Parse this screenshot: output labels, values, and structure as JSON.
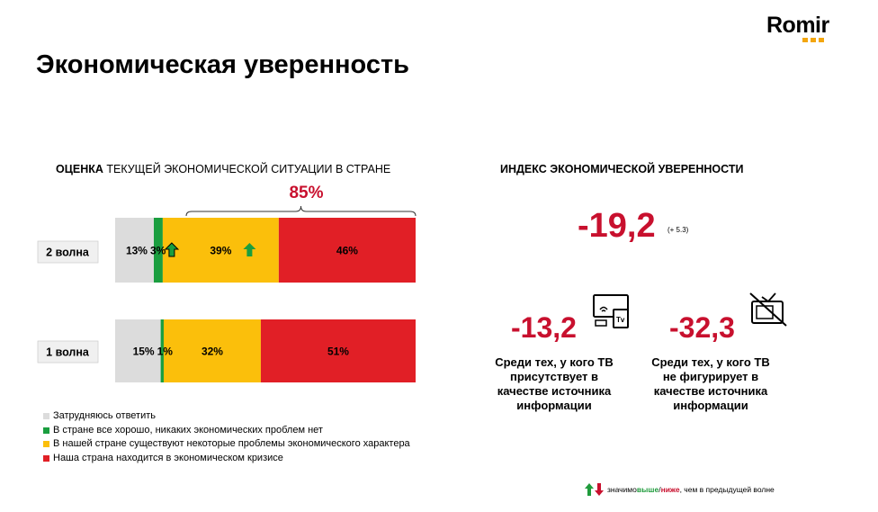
{
  "logo": {
    "text": "Romir"
  },
  "title": "Экономическая уверенность",
  "left": {
    "title_bold": "ОЦЕНКА",
    "title_rest": " ТЕКУЩЕЙ ЭКОНОМИЧЕСКОЙ СИТУАЦИИ В СТРАНЕ",
    "brace_label": "85%"
  },
  "chart_data": {
    "type": "bar",
    "orientation": "horizontal-stacked-100",
    "categories": [
      "2 волна",
      "1 волна"
    ],
    "series": [
      {
        "name": "Затрудняюсь ответить",
        "values": [
          13,
          15
        ],
        "labels": [
          "13%",
          "15%"
        ],
        "color": "#dcdcdc"
      },
      {
        "name": "В стране все хорошо, никаких экономических проблем нет",
        "values": [
          3,
          1
        ],
        "labels": [
          "3%",
          "1%"
        ],
        "color": "#1a9e3f"
      },
      {
        "name": "В нашей стране существуют некоторые проблемы экономического характера",
        "values": [
          39,
          32
        ],
        "labels": [
          "39%",
          "32%"
        ],
        "color": "#fbbf0b"
      },
      {
        "name": "Наша страна находится в экономическом кризисе",
        "values": [
          46,
          51
        ],
        "labels": [
          "46%",
          "51%"
        ],
        "color": "#e11f26"
      }
    ],
    "markers": [
      {
        "category": "2 волна",
        "after_series": 1,
        "icon": "arrow-up-green-bordered-icon"
      },
      {
        "category": "2 волна",
        "after_series": 2,
        "icon": "arrow-up-green-icon"
      }
    ]
  },
  "right": {
    "title": "ИНДЕКС ЭКОНОМИЧЕСКОЙ УВЕРЕННОСТИ",
    "main_value": "-19,2",
    "main_delta": "(+ 5.3)",
    "with_tv": {
      "value": "-13,2",
      "text": "Среди тех, у кого ТВ\nприсутствует в\nкачестве источника\nинформации",
      "icon": "tv-icon"
    },
    "without_tv": {
      "value": "-32,3",
      "text": "Среди тех, у кого ТВ\nне фигурирует в\nкачестве источника\nинформации",
      "icon": "no-tv-icon"
    }
  },
  "footnote": {
    "prefix": "значимо ",
    "higher": "выше",
    "slash": "/",
    "lower": "ниже",
    "suffix": ", чем в предыдущей волне"
  }
}
